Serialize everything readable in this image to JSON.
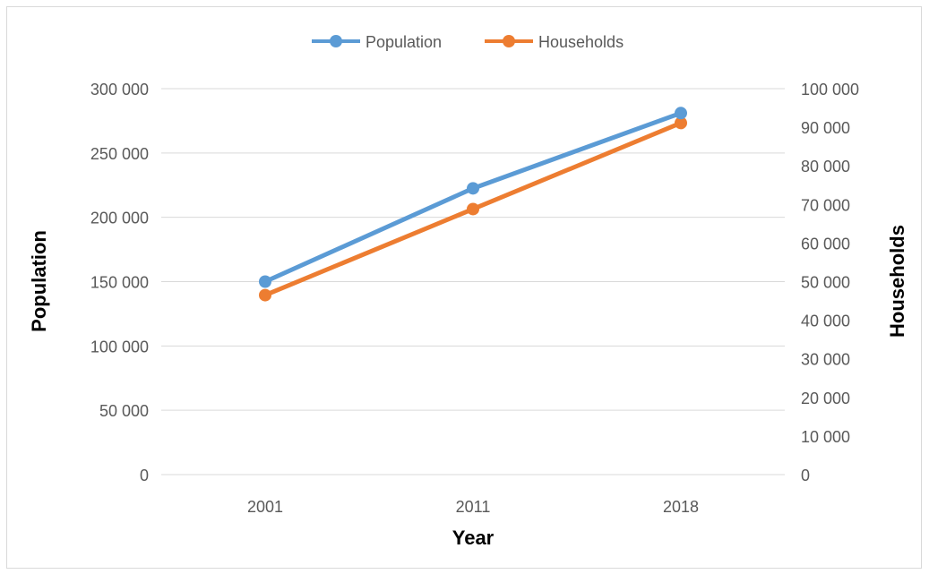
{
  "chart_data": {
    "type": "line",
    "categories": [
      "2001",
      "2011",
      "2018"
    ],
    "series": [
      {
        "name": "Population",
        "axis": "left",
        "color": "#5b9bd5",
        "values": [
          150000,
          222500,
          281000
        ]
      },
      {
        "name": "Households",
        "axis": "right",
        "color": "#ed7d31",
        "values": [
          46500,
          68800,
          91100
        ]
      }
    ],
    "xlabel": "Year",
    "ylabel": "Population",
    "y2label": "Households",
    "ylim": [
      0,
      300000
    ],
    "y2lim": [
      0,
      100000
    ],
    "yticks": [
      "0",
      "50 000",
      "100 000",
      "150 000",
      "200 000",
      "250 000",
      "300 000"
    ],
    "y2ticks": [
      "0",
      "10 000",
      "20 000",
      "30 000",
      "40 000",
      "50 000",
      "60 000",
      "70 000",
      "80 000",
      "90 000",
      "100 000"
    ],
    "grid": true,
    "legend": "top-center"
  }
}
